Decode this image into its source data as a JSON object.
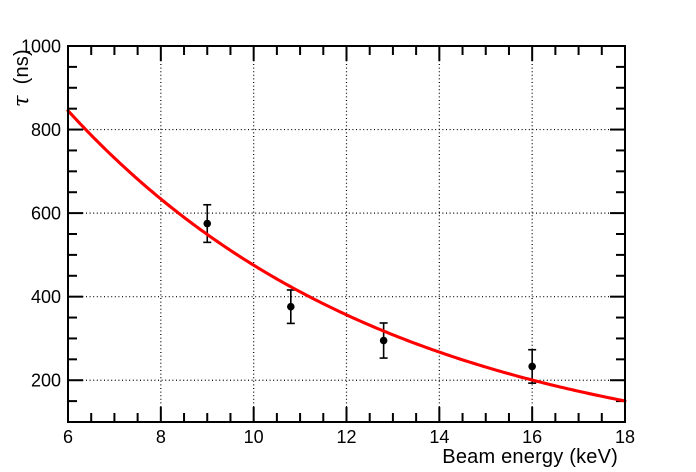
{
  "chart_data": {
    "type": "scatter",
    "title": "",
    "xlabel": "Beam energy (keV)",
    "ylabel": "τ (ns)",
    "ylabel_symbol": "τ",
    "ylabel_units": "(ns)",
    "xlim": [
      6,
      18
    ],
    "ylim": [
      100,
      1000
    ],
    "x_major_ticks": [
      6,
      8,
      10,
      12,
      14,
      16,
      18
    ],
    "x_minor_step": 0.5,
    "y_major_ticks": [
      200,
      400,
      600,
      800,
      1000
    ],
    "y_minor_step": 50,
    "grid": {
      "style": "dotted",
      "on_major_ticks": true
    },
    "legend": null,
    "series": [
      {
        "name": "measured-lifetimes",
        "type": "scatter-errorbars",
        "marker": "filled-circle",
        "color": "#000000",
        "points": [
          {
            "x": 9.0,
            "y": 575,
            "yerr": 45
          },
          {
            "x": 10.8,
            "y": 376,
            "yerr": 40
          },
          {
            "x": 12.8,
            "y": 295,
            "yerr": 42
          },
          {
            "x": 16.0,
            "y": 233,
            "yerr": 40
          }
        ]
      },
      {
        "name": "exponential-fit",
        "type": "curve",
        "color": "#ff0000",
        "formula": "tau(E) = 2004 * exp(-E / 6.95)",
        "amplitude_ns": 2004,
        "decay_const_keV": 6.95,
        "x_range": [
          6,
          18
        ]
      }
    ],
    "colors": {
      "curve": "#ff0000",
      "points": "#000000",
      "axes": "#000000",
      "grid": "#000000",
      "background": "#ffffff"
    }
  }
}
